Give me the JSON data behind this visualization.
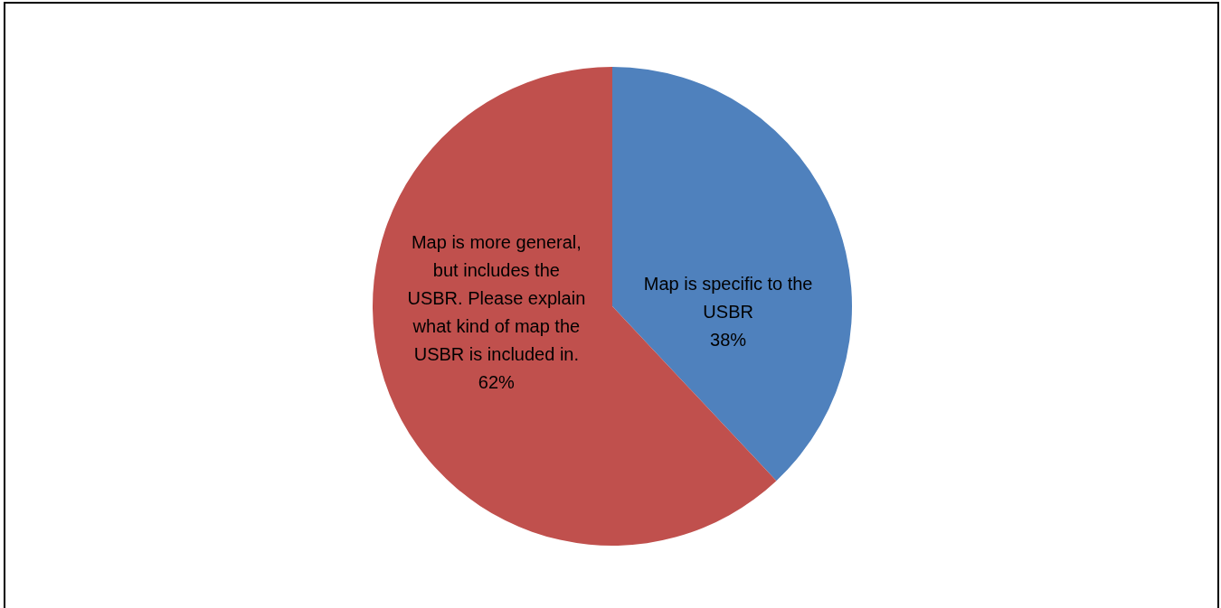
{
  "chart_data": {
    "type": "pie",
    "categories": [
      "Map is specific to the USBR",
      "Map is more general, but includes the USBR. Please explain what kind of map the USBR is included in."
    ],
    "values": [
      38,
      62
    ],
    "colors": [
      "#4f81bd",
      "#c0504d"
    ],
    "value_labels": [
      "38%",
      "62%"
    ],
    "legend": false
  }
}
